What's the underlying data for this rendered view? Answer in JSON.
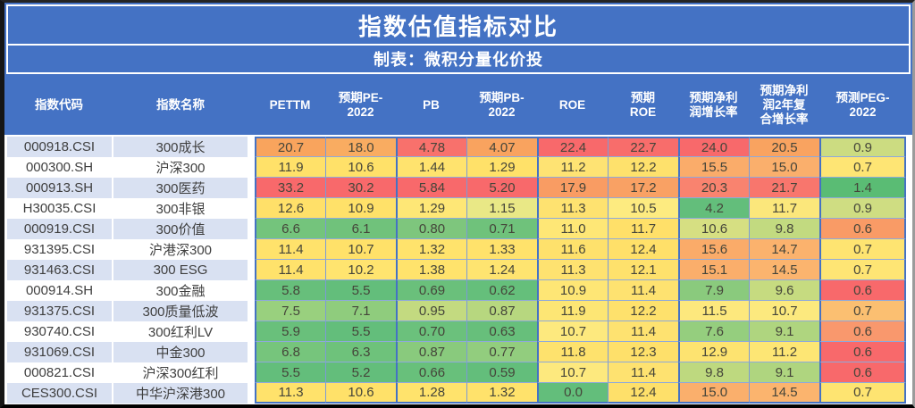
{
  "title": "指数估值指标对比",
  "subtitle": "制表：微积分量化价投",
  "header_cells": [
    "指数代码",
    "指数名称",
    "PETTM",
    "预期PE-\n2022",
    "PB",
    "预期PB-\n2022",
    "ROE",
    "预期\nROE",
    "预期净利\n润增长率",
    "预期净利\n润2年复\n合增长率",
    "预测PEG-\n2022"
  ],
  "colors": {
    "header_bg": "#4472C4",
    "header_text": "#FFFFFF",
    "row_band": "#D9E1F2",
    "row_plain": "#FFFFFF",
    "group_border": "#4472C4",
    "inner_border": "#8EA9DB",
    "bottom_border": "#000000",
    "scale_low_green": "#63BE7B",
    "scale_mid_yellow": "#FFE169",
    "scale_high_red": "#F8696B",
    "value_text": "#45453A",
    "label_text": "#3F3F3F"
  },
  "chart_data": {
    "type": "table",
    "title": "指数估值指标对比",
    "subtitle": "制表：微积分量化价投",
    "columns": [
      "指数代码",
      "指数名称",
      "PETTM",
      "预期PE-2022",
      "PB",
      "预期PB-2022",
      "ROE",
      "预期ROE",
      "预期净利润增长率",
      "预期净利润2年复合增长率",
      "预测PEG-2022"
    ],
    "column_groups": [
      [
        "PETTM",
        "预期PE-2022"
      ],
      [
        "PB",
        "预期PB-2022"
      ],
      [
        "ROE",
        "预期ROE"
      ],
      [
        "预期净利润增长率",
        "预期净利润2年复合增长率"
      ],
      [
        "预测PEG-2022"
      ]
    ],
    "conditional_formatting": "red-yellow-green 3-color scale heat map per cell",
    "rows": [
      {
        "code": "000918.CSI",
        "name": "300成长",
        "values": [
          "20.7",
          "18.0",
          "4.78",
          "4.07",
          "22.4",
          "22.7",
          "24.0",
          "20.5",
          "0.9"
        ],
        "cell_colors": [
          "#F9A45D",
          "#F9AC61",
          "#F8716C",
          "#F9A35F",
          "#F8696B",
          "#F86D6B",
          "#F8696B",
          "#F9A360",
          "#CCDC81"
        ]
      },
      {
        "code": "000300.SH",
        "name": "沪深300",
        "values": [
          "11.9",
          "10.6",
          "1.44",
          "1.29",
          "11.2",
          "12.2",
          "15.5",
          "15.0",
          "0.7"
        ],
        "cell_colors": [
          "#FFE169",
          "#FFE169",
          "#FFE36E",
          "#FFE169",
          "#FEE373",
          "#FEE16C",
          "#FAAC6A",
          "#FAAF6C",
          "#FEE574"
        ]
      },
      {
        "code": "000913.SH",
        "name": "300医药",
        "values": [
          "33.2",
          "30.2",
          "5.84",
          "5.20",
          "17.9",
          "17.2",
          "20.3",
          "21.7",
          "1.4"
        ],
        "cell_colors": [
          "#F8696B",
          "#F8696B",
          "#F8696B",
          "#F8696B",
          "#F99C63",
          "#F9A164",
          "#F9836F",
          "#F8766D",
          "#5ABC74"
        ]
      },
      {
        "code": "H30035.CSI",
        "name": "300非银",
        "values": [
          "12.6",
          "10.9",
          "1.29",
          "1.15",
          "11.3",
          "10.5",
          "4.2",
          "11.7",
          "0.9"
        ],
        "cell_colors": [
          "#FFE069",
          "#FFE169",
          "#FEE776",
          "#E9E886",
          "#FEE270",
          "#FDEB80",
          "#63BE7B",
          "#FBE77B",
          "#CFDD82"
        ]
      },
      {
        "code": "000919.CSI",
        "name": "300价值",
        "values": [
          "6.6",
          "6.1",
          "0.80",
          "0.71",
          "11.0",
          "11.7",
          "10.6",
          "9.8",
          "0.6"
        ],
        "cell_colors": [
          "#74C47C",
          "#70C27B",
          "#7EC67D",
          "#6FC27B",
          "#FEE776",
          "#FFE069",
          "#D6DF82",
          "#C2DA80",
          "#F99B66"
        ]
      },
      {
        "code": "931395.CSI",
        "name": "沪港深300",
        "values": [
          "11.4",
          "10.7",
          "1.32",
          "1.33",
          "11.6",
          "12.4",
          "15.6",
          "14.7",
          "0.7"
        ],
        "cell_colors": [
          "#FFE26B",
          "#FFE169",
          "#FFE36C",
          "#FFE26B",
          "#FEE16C",
          "#FFE069",
          "#FAAB69",
          "#FBB26D",
          "#FEE471"
        ]
      },
      {
        "code": "931463.CSI",
        "name": "300 ESG",
        "values": [
          "11.4",
          "10.2",
          "1.38",
          "1.24",
          "11.3",
          "12.1",
          "15.1",
          "14.5",
          "0.7"
        ],
        "cell_colors": [
          "#FFE26B",
          "#FFE46F",
          "#FFE36C",
          "#FEE470",
          "#FEE270",
          "#FEE16C",
          "#FAAE6B",
          "#FBB46E",
          "#FEE574"
        ]
      },
      {
        "code": "000914.SH",
        "name": "300金融",
        "values": [
          "5.8",
          "5.5",
          "0.69",
          "0.62",
          "10.9",
          "11.4",
          "7.9",
          "9.6",
          "0.6"
        ],
        "cell_colors": [
          "#67BF7B",
          "#63BE7B",
          "#6AC07B",
          "#65BF7B",
          "#FEE675",
          "#FEE270",
          "#8ACA7D",
          "#C6DB80",
          "#F8696B"
        ]
      },
      {
        "code": "931375.CSI",
        "name": "300质量低波",
        "values": [
          "7.5",
          "7.1",
          "0.95",
          "0.87",
          "11.9",
          "12.2",
          "11.5",
          "10.7",
          "0.7"
        ],
        "cell_colors": [
          "#99D07E",
          "#8FCC7D",
          "#C3DA80",
          "#B7D77F",
          "#FDE674",
          "#FEE16C",
          "#FDE87D",
          "#FCE97E",
          "#FBBF71"
        ]
      },
      {
        "code": "930740.CSI",
        "name": "300红利LV",
        "values": [
          "5.9",
          "5.5",
          "0.70",
          "0.63",
          "10.7",
          "11.4",
          "7.6",
          "9.1",
          "0.6"
        ],
        "cell_colors": [
          "#69C07B",
          "#63BE7B",
          "#6BC17C",
          "#67BF7B",
          "#FDE97E",
          "#FEE270",
          "#95CE7E",
          "#AFD57F",
          "#F9986D"
        ]
      },
      {
        "code": "931069.CSI",
        "name": "中金300",
        "values": [
          "6.8",
          "6.3",
          "0.87",
          "0.77",
          "11.8",
          "12.3",
          "12.9",
          "11.2",
          "0.6"
        ],
        "cell_colors": [
          "#76C57C",
          "#6EC27B",
          "#89CA7D",
          "#92CD7E",
          "#FEE26D",
          "#FEE06A",
          "#FDE370",
          "#FDE674",
          "#F8696B"
        ]
      },
      {
        "code": "000821.CSI",
        "name": "沪深300红利",
        "values": [
          "5.5",
          "5.2",
          "0.66",
          "0.59",
          "10.7",
          "11.4",
          "9.8",
          "9.1",
          "0.6"
        ],
        "cell_colors": [
          "#63BE7B",
          "#63BE7B",
          "#68C07B",
          "#63BE7B",
          "#FDE97E",
          "#FEE270",
          "#BED97F",
          "#AFD57F",
          "#F8696B"
        ]
      },
      {
        "code": "CES300.CSI",
        "name": "中华沪深港300",
        "values": [
          "11.3",
          "10.6",
          "1.28",
          "1.32",
          "0.0",
          "12.4",
          "15.0",
          "14.5",
          "0.7"
        ],
        "cell_colors": [
          "#FFE26B",
          "#FFE169",
          "#FFE36C",
          "#FFE26B",
          "#63BE7B",
          "#FEE06A",
          "#FAAF6C",
          "#FBB46E",
          "#FEE471"
        ]
      }
    ]
  }
}
